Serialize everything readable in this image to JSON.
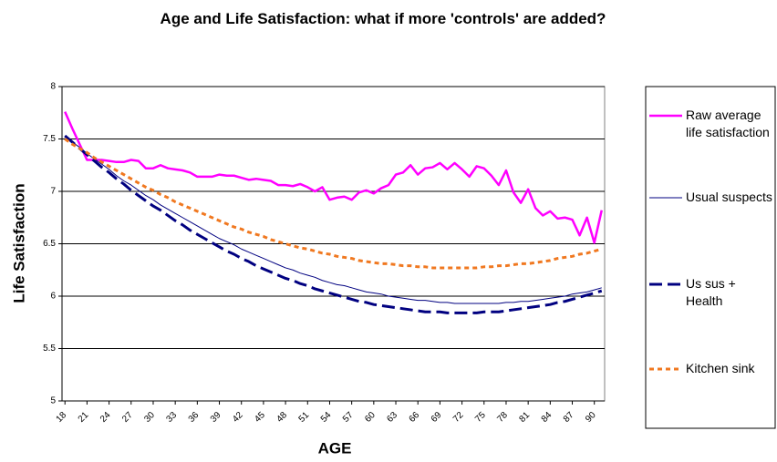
{
  "chart_data": {
    "type": "line",
    "title": "Age and Life Satisfaction: what if more 'controls' are added?",
    "x_label": "AGE",
    "y_label": "Life Satisfaction",
    "x": [
      18,
      19,
      20,
      21,
      22,
      23,
      24,
      25,
      26,
      27,
      28,
      29,
      30,
      31,
      32,
      33,
      34,
      35,
      36,
      37,
      38,
      39,
      40,
      41,
      42,
      43,
      44,
      45,
      46,
      47,
      48,
      49,
      50,
      51,
      52,
      53,
      54,
      55,
      56,
      57,
      58,
      59,
      60,
      61,
      62,
      63,
      64,
      65,
      66,
      67,
      68,
      69,
      70,
      71,
      72,
      73,
      74,
      75,
      76,
      77,
      78,
      79,
      80,
      81,
      82,
      83,
      84,
      85,
      86,
      87,
      88,
      89,
      90,
      91
    ],
    "xlim": [
      17.6,
      91.4
    ],
    "xticks": [
      18,
      21,
      24,
      27,
      30,
      33,
      36,
      39,
      42,
      45,
      48,
      51,
      54,
      57,
      60,
      63,
      66,
      69,
      72,
      75,
      78,
      81,
      84,
      87,
      90
    ],
    "ylim": [
      5,
      8
    ],
    "yticks": [
      5,
      5.5,
      6,
      6.5,
      7,
      7.5,
      8
    ],
    "grid": true,
    "series": [
      {
        "name": "Raw average life satisfaction",
        "color": "#ff00ff",
        "style": "solid",
        "width": 2.5,
        "values": [
          7.76,
          7.6,
          7.45,
          7.3,
          7.3,
          7.3,
          7.29,
          7.28,
          7.28,
          7.3,
          7.29,
          7.22,
          7.22,
          7.25,
          7.22,
          7.21,
          7.2,
          7.18,
          7.14,
          7.14,
          7.14,
          7.16,
          7.15,
          7.15,
          7.13,
          7.11,
          7.12,
          7.11,
          7.1,
          7.06,
          7.06,
          7.05,
          7.07,
          7.04,
          7.0,
          7.04,
          6.92,
          6.94,
          6.95,
          6.92,
          6.99,
          7.01,
          6.98,
          7.03,
          7.06,
          7.16,
          7.18,
          7.25,
          7.16,
          7.22,
          7.23,
          7.27,
          7.21,
          7.27,
          7.21,
          7.14,
          7.24,
          7.22,
          7.15,
          7.06,
          7.2,
          6.99,
          6.89,
          7.02,
          6.84,
          6.77,
          6.81,
          6.74,
          6.75,
          6.73,
          6.58,
          6.75,
          6.51,
          6.82
        ]
      },
      {
        "name": "Usual suspects",
        "color": "#000080",
        "style": "solid",
        "width": 1,
        "values": [
          7.53,
          7.47,
          7.42,
          7.36,
          7.31,
          7.26,
          7.21,
          7.15,
          7.1,
          7.06,
          7.01,
          6.96,
          6.92,
          6.87,
          6.83,
          6.79,
          6.75,
          6.71,
          6.67,
          6.63,
          6.59,
          6.55,
          6.52,
          6.49,
          6.45,
          6.42,
          6.39,
          6.36,
          6.33,
          6.3,
          6.27,
          6.25,
          6.22,
          6.2,
          6.18,
          6.15,
          6.13,
          6.11,
          6.1,
          6.08,
          6.06,
          6.04,
          6.03,
          6.02,
          6.0,
          5.99,
          5.98,
          5.97,
          5.96,
          5.96,
          5.95,
          5.94,
          5.94,
          5.93,
          5.93,
          5.93,
          5.93,
          5.93,
          5.93,
          5.93,
          5.94,
          5.94,
          5.95,
          5.95,
          5.96,
          5.97,
          5.98,
          5.99,
          6.0,
          6.02,
          6.03,
          6.04,
          6.06,
          6.08
        ]
      },
      {
        "name": "Us sus + Health",
        "color": "#000080",
        "style": "dashed",
        "width": 3,
        "values": [
          7.53,
          7.47,
          7.41,
          7.35,
          7.29,
          7.23,
          7.18,
          7.12,
          7.07,
          7.01,
          6.96,
          6.91,
          6.86,
          6.82,
          6.77,
          6.72,
          6.68,
          6.63,
          6.59,
          6.55,
          6.51,
          6.47,
          6.43,
          6.4,
          6.36,
          6.33,
          6.29,
          6.26,
          6.23,
          6.2,
          6.17,
          6.15,
          6.12,
          6.1,
          6.07,
          6.05,
          6.03,
          6.01,
          5.99,
          5.97,
          5.95,
          5.94,
          5.92,
          5.91,
          5.9,
          5.89,
          5.88,
          5.87,
          5.86,
          5.85,
          5.85,
          5.85,
          5.84,
          5.84,
          5.84,
          5.84,
          5.84,
          5.85,
          5.85,
          5.85,
          5.86,
          5.87,
          5.88,
          5.89,
          5.9,
          5.91,
          5.92,
          5.94,
          5.95,
          5.97,
          5.99,
          6.01,
          6.03,
          6.05
        ]
      },
      {
        "name": "Kitchen sink",
        "color": "#f07820",
        "style": "dotted",
        "width": 3,
        "values": [
          7.5,
          7.45,
          7.41,
          7.37,
          7.32,
          7.28,
          7.24,
          7.2,
          7.16,
          7.12,
          7.08,
          7.04,
          7.01,
          6.97,
          6.94,
          6.9,
          6.87,
          6.84,
          6.81,
          6.78,
          6.75,
          6.72,
          6.69,
          6.66,
          6.64,
          6.61,
          6.59,
          6.57,
          6.54,
          6.52,
          6.5,
          6.48,
          6.46,
          6.45,
          6.43,
          6.41,
          6.4,
          6.38,
          6.37,
          6.36,
          6.34,
          6.33,
          6.32,
          6.31,
          6.31,
          6.3,
          6.29,
          6.29,
          6.28,
          6.28,
          6.27,
          6.27,
          6.27,
          6.27,
          6.27,
          6.27,
          6.27,
          6.28,
          6.28,
          6.29,
          6.29,
          6.3,
          6.31,
          6.31,
          6.32,
          6.33,
          6.34,
          6.36,
          6.37,
          6.38,
          6.4,
          6.41,
          6.43,
          6.45
        ]
      }
    ]
  }
}
